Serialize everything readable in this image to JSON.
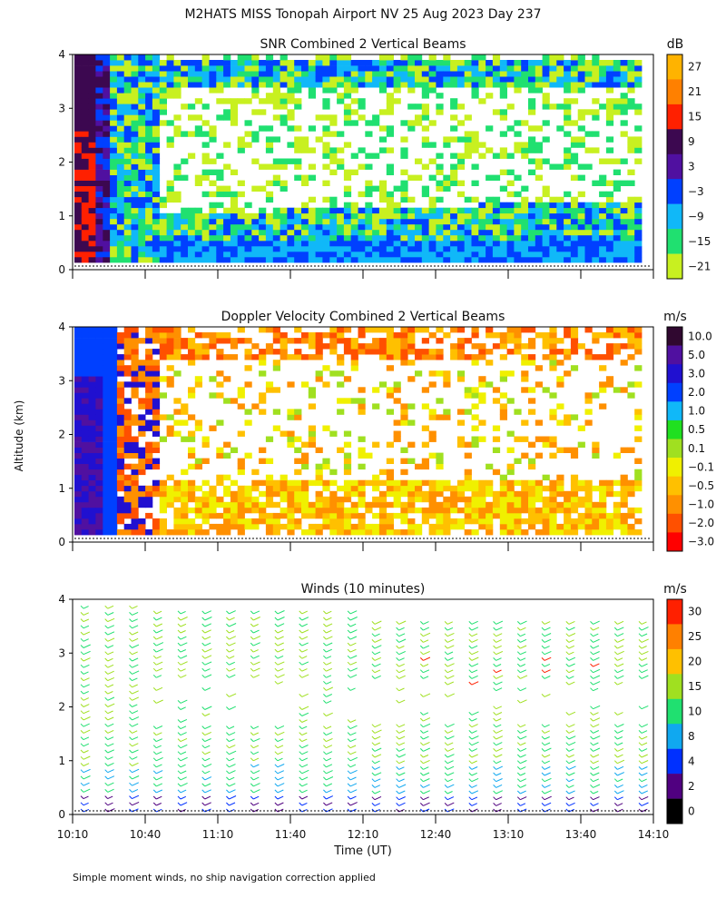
{
  "header": {
    "title": "M2HATS MISS Tonopah Airport NV  25 Aug 2023 Day 237"
  },
  "footer": {
    "note": "Simple moment winds, no ship navigation correction applied"
  },
  "axes": {
    "ylabel": "Altitude (km)",
    "xlabel": "Time (UT)",
    "x_ticks": [
      "10:10",
      "10:40",
      "11:10",
      "11:40",
      "12:10",
      "12:40",
      "13:10",
      "13:40",
      "14:10"
    ],
    "y_ticks": [
      "0",
      "1",
      "2",
      "3",
      "4"
    ]
  },
  "chart_data": [
    {
      "type": "heatmap",
      "title": "SNR Combined 2 Vertical Beams",
      "x_range": [
        "10:10",
        "14:10"
      ],
      "ylim": [
        0,
        4
      ],
      "colorbar": {
        "unit": "dB",
        "labels": [
          "27",
          "21",
          "15",
          "9",
          "3",
          "−3",
          "−9",
          "−15",
          "−21"
        ],
        "colors": [
          "#ffb300",
          "#ff8000",
          "#ff2000",
          "#3c0850",
          "#5010a0",
          "#0040ff",
          "#10b8f8",
          "#20e070",
          "#c8f020"
        ]
      }
    },
    {
      "type": "heatmap",
      "title": "Doppler Velocity Combined 2 Vertical Beams",
      "x_range": [
        "10:10",
        "14:10"
      ],
      "ylim": [
        0,
        4
      ],
      "colorbar": {
        "unit": "m/s",
        "labels": [
          "10.0",
          "5.0",
          "3.0",
          "2.0",
          "1.0",
          "0.5",
          "0.1",
          "−0.1",
          "−0.5",
          "−1.0",
          "−2.0",
          "−3.0"
        ],
        "colors": [
          "#300830",
          "#5010a0",
          "#2010d0",
          "#0040ff",
          "#10b8f8",
          "#20e020",
          "#a0e020",
          "#f0f000",
          "#ffc000",
          "#ff9000",
          "#ff5000",
          "#ff0000"
        ]
      }
    },
    {
      "type": "scatter",
      "title": "Winds (10 minutes)",
      "x_range": [
        "10:10",
        "14:10"
      ],
      "ylim": [
        0,
        4
      ],
      "colorbar": {
        "unit": "m/s",
        "labels": [
          "30",
          "25",
          "20",
          "15",
          "10",
          "8",
          "4",
          "2",
          "0"
        ],
        "colors": [
          "#ff2000",
          "#ff8000",
          "#ffc000",
          "#a0e020",
          "#20e070",
          "#10a8f0",
          "#0030ff",
          "#500080",
          "#000000"
        ]
      }
    }
  ]
}
